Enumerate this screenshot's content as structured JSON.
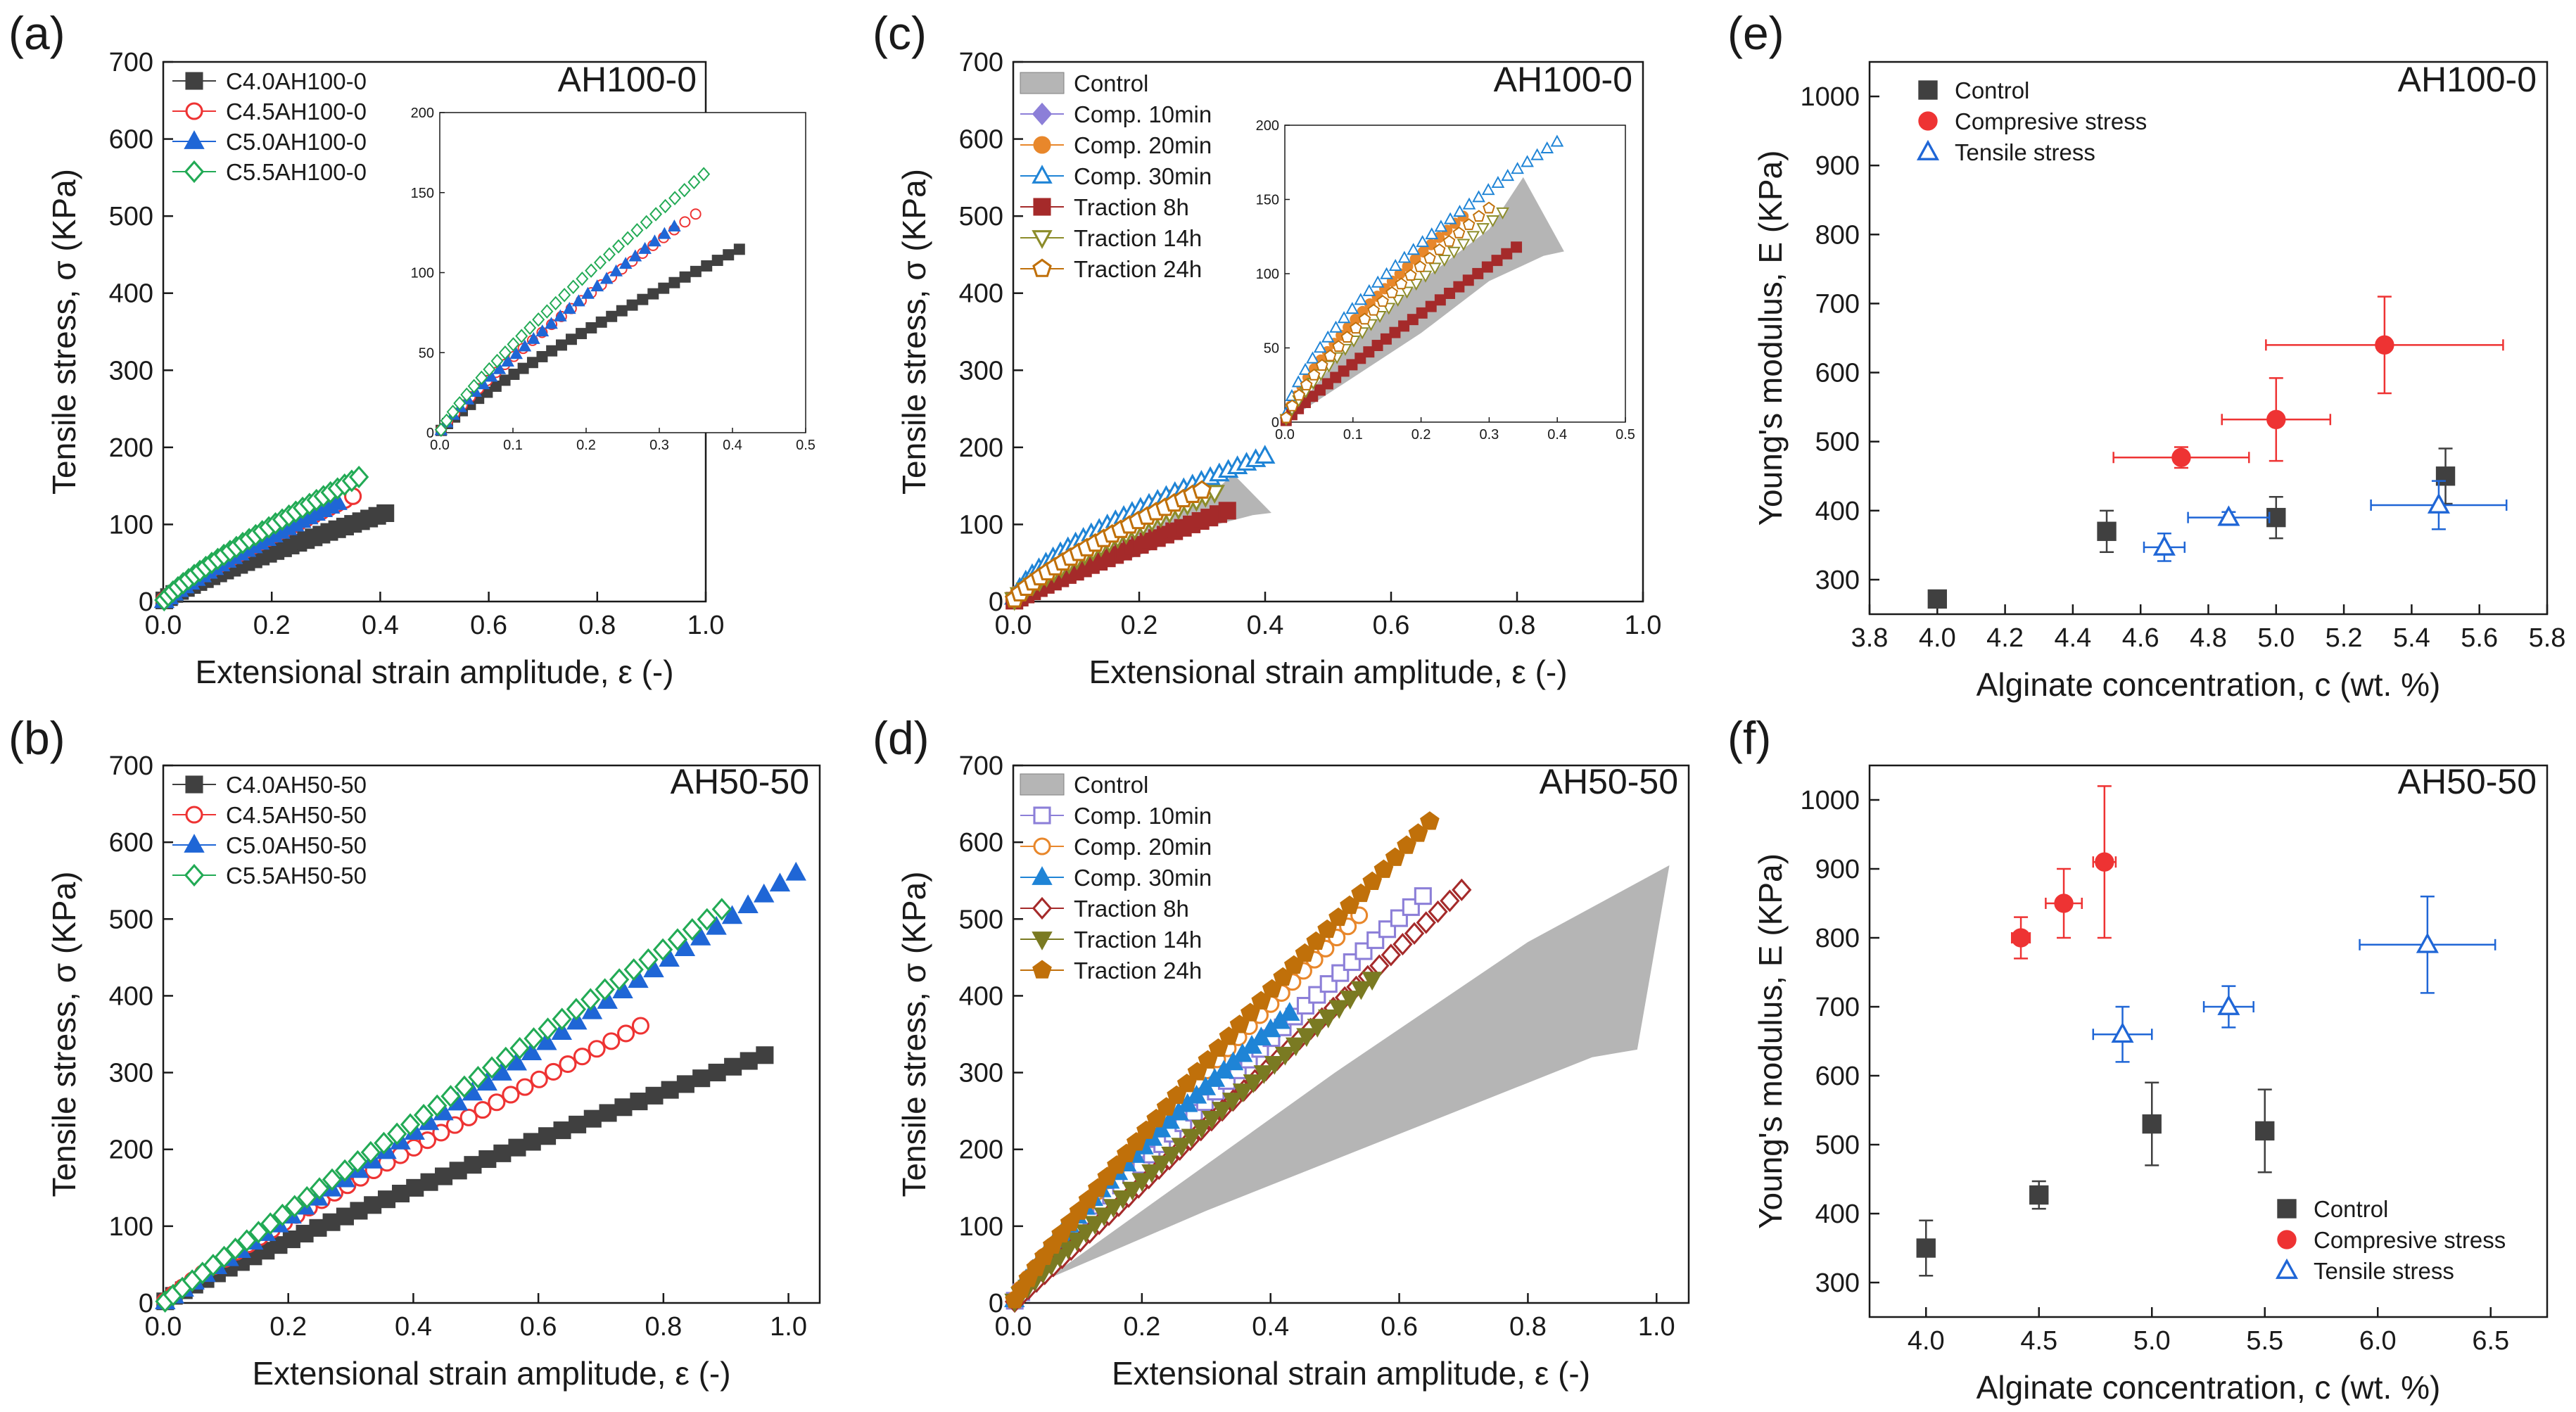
{
  "figure": {
    "domain": "Chart"
  },
  "chart_data": [
    {
      "id": "a",
      "panel_label": "(a)",
      "tag": "AH100-0",
      "type": "scatter",
      "xlabel": "Extensional strain amplitude, ε (-)",
      "ylabel": "Tensile stress, σ (KPa)",
      "xlim": [
        0,
        1.0
      ],
      "ylim": [
        0,
        700
      ],
      "xticks": [
        "0.0",
        "0.2",
        "0.4",
        "0.6",
        "0.8",
        "1.0"
      ],
      "yticks": [
        "0",
        "100",
        "200",
        "300",
        "400",
        "500",
        "600",
        "700"
      ],
      "legend_position": "top-left",
      "series": [
        {
          "name": "C4.0AH100-0",
          "color": "#404040",
          "marker": "square",
          "filled": true,
          "xmax": 0.42,
          "ymax": 117,
          "power": 0.82,
          "n": 32
        },
        {
          "name": "C4.5AH100-0",
          "color": "#ee3333",
          "marker": "circle",
          "filled": false,
          "xmax": 0.36,
          "ymax": 140,
          "power": 0.85,
          "n": 28
        },
        {
          "name": "C5.0AH100-0",
          "color": "#1f66d6",
          "marker": "triangle",
          "filled": true,
          "xmax": 0.33,
          "ymax": 132,
          "power": 0.86,
          "n": 28
        },
        {
          "name": "C5.5AH100-0",
          "color": "#22aa55",
          "marker": "diamond",
          "filled": false,
          "xmax": 0.37,
          "ymax": 165,
          "power": 0.84,
          "n": 32
        }
      ],
      "inset": {
        "xlim": [
          0,
          0.5
        ],
        "ylim": [
          0,
          200
        ],
        "xticks": [
          "0.0",
          "0.1",
          "0.2",
          "0.3",
          "0.4",
          "0.5"
        ],
        "yticks": [
          "0",
          "50",
          "100",
          "150",
          "200"
        ]
      }
    },
    {
      "id": "b",
      "panel_label": "(b)",
      "tag": "AH50-50",
      "type": "scatter",
      "xlabel": "Extensional strain amplitude, ε (-)",
      "ylabel": "Tensile stress, σ (KPa)",
      "xlim": [
        0,
        1.05
      ],
      "ylim": [
        0,
        700
      ],
      "xticks": [
        "0.0",
        "0.2",
        "0.4",
        "0.6",
        "0.8",
        "1.0"
      ],
      "yticks": [
        "0",
        "100",
        "200",
        "300",
        "400",
        "500",
        "600",
        "700"
      ],
      "legend_position": "top-left",
      "series": [
        {
          "name": "C4.0AH50-50",
          "color": "#404040",
          "marker": "square",
          "filled": true,
          "xmax": 0.98,
          "ymax": 328,
          "power": 0.88,
          "n": 44
        },
        {
          "name": "C4.5AH50-50",
          "color": "#ee3333",
          "marker": "circle",
          "filled": false,
          "xmax": 0.78,
          "ymax": 368,
          "power": 0.9,
          "n": 38
        },
        {
          "name": "C5.0AH50-50",
          "color": "#1f66d6",
          "marker": "triangle",
          "filled": true,
          "xmax": 1.03,
          "ymax": 570,
          "power": 1.0,
          "n": 46
        },
        {
          "name": "C5.5AH50-50",
          "color": "#22aa55",
          "marker": "diamond",
          "filled": false,
          "xmax": 0.91,
          "ymax": 522,
          "power": 0.97,
          "n": 44
        }
      ]
    },
    {
      "id": "c",
      "panel_label": "(c)",
      "tag": "AH100-0",
      "type": "scatter",
      "xlabel": "Extensional strain amplitude, ε (-)",
      "ylabel": "Tensile stress, σ (KPa)",
      "xlim": [
        0,
        1.0
      ],
      "ylim": [
        0,
        700
      ],
      "xticks": [
        "0.0",
        "0.2",
        "0.4",
        "0.6",
        "0.8",
        "1.0"
      ],
      "yticks": [
        "0",
        "100",
        "200",
        "300",
        "400",
        "500",
        "600",
        "700"
      ],
      "legend_position": "top-left",
      "control_band": {
        "name": "Control",
        "color": "#b5b5b5",
        "upper": [
          [
            0,
            0
          ],
          [
            0.1,
            55
          ],
          [
            0.2,
            95
          ],
          [
            0.3,
            130
          ],
          [
            0.35,
            165
          ],
          [
            0.41,
            115
          ]
        ],
        "lower": [
          [
            0,
            0
          ],
          [
            0.1,
            30
          ],
          [
            0.2,
            60
          ],
          [
            0.3,
            95
          ],
          [
            0.38,
            112
          ],
          [
            0.41,
            115
          ]
        ]
      },
      "series": [
        {
          "name": "Comp. 10min",
          "color": "#8c7fd8",
          "marker": "diamond",
          "filled": true,
          "xmax": 0.0,
          "ymax": 0,
          "power": 0.8,
          "n": 0
        },
        {
          "name": "Comp. 20min",
          "color": "#e8872b",
          "marker": "circle",
          "filled": true,
          "xmax": 0.27,
          "ymax": 142,
          "power": 0.75,
          "n": 26
        },
        {
          "name": "Comp. 30min",
          "color": "#1f84d6",
          "marker": "triangle",
          "filled": false,
          "xmax": 0.41,
          "ymax": 192,
          "power": 0.65,
          "n": 32
        },
        {
          "name": "Traction 8h",
          "color": "#a52a2a",
          "marker": "square",
          "filled": true,
          "xmax": 0.35,
          "ymax": 121,
          "power": 0.9,
          "n": 28
        },
        {
          "name": "Traction 14h",
          "color": "#8c8c2a",
          "marker": "triangle-down",
          "filled": false,
          "xmax": 0.33,
          "ymax": 145,
          "power": 0.82,
          "n": 26
        },
        {
          "name": "Traction 24h",
          "color": "#c0700a",
          "marker": "pentagon",
          "filled": false,
          "xmax": 0.31,
          "ymax": 148,
          "power": 0.78,
          "n": 24
        }
      ],
      "inset": {
        "xlim": [
          0,
          0.5
        ],
        "ylim": [
          0,
          200
        ],
        "xticks": [
          "0.0",
          "0.1",
          "0.2",
          "0.3",
          "0.4",
          "0.5"
        ],
        "yticks": [
          "0",
          "50",
          "100",
          "150",
          "200"
        ]
      }
    },
    {
      "id": "d",
      "panel_label": "(d)",
      "tag": "AH50-50",
      "type": "scatter",
      "xlabel": "Extensional strain amplitude, ε (-)",
      "ylabel": "Tensile stress, σ (KPa)",
      "xlim": [
        0,
        1.05
      ],
      "ylim": [
        0,
        700
      ],
      "xticks": [
        "0.0",
        "0.2",
        "0.4",
        "0.6",
        "0.8",
        "1.0"
      ],
      "yticks": [
        "0",
        "100",
        "200",
        "300",
        "400",
        "500",
        "600",
        "700"
      ],
      "legend_position": "top-left",
      "control_band": {
        "name": "Control",
        "color": "#b5b5b5",
        "upper": [
          [
            0.05,
            30
          ],
          [
            0.2,
            120
          ],
          [
            0.5,
            300
          ],
          [
            0.8,
            470
          ],
          [
            1.02,
            570
          ]
        ],
        "lower": [
          [
            0.05,
            30
          ],
          [
            0.3,
            120
          ],
          [
            0.6,
            220
          ],
          [
            0.9,
            320
          ],
          [
            0.97,
            330
          ],
          [
            1.02,
            570
          ]
        ]
      },
      "series": [
        {
          "name": "Comp. 10min",
          "color": "#8c7fd8",
          "marker": "square",
          "filled": false,
          "xmax": 0.65,
          "ymax": 540,
          "power": 0.93,
          "n": 40
        },
        {
          "name": "Comp. 20min",
          "color": "#e8872b",
          "marker": "circle",
          "filled": false,
          "xmax": 0.55,
          "ymax": 515,
          "power": 0.88,
          "n": 36
        },
        {
          "name": "Comp. 30min",
          "color": "#1f84d6",
          "marker": "triangle",
          "filled": true,
          "xmax": 0.44,
          "ymax": 385,
          "power": 0.82,
          "n": 34
        },
        {
          "name": "Traction 8h",
          "color": "#a52a2a",
          "marker": "diamond",
          "filled": false,
          "xmax": 0.71,
          "ymax": 548,
          "power": 1.0,
          "n": 44
        },
        {
          "name": "Traction 14h",
          "color": "#7a7a22",
          "marker": "triangle-down",
          "filled": true,
          "xmax": 0.57,
          "ymax": 430,
          "power": 0.95,
          "n": 38
        },
        {
          "name": "Traction 24h",
          "color": "#c0700a",
          "marker": "pentagon",
          "filled": true,
          "xmax": 0.66,
          "ymax": 638,
          "power": 0.9,
          "n": 42
        }
      ]
    },
    {
      "id": "e",
      "panel_label": "(e)",
      "tag": "AH100-0",
      "type": "scatter",
      "xlabel": "Alginate concentration, c (wt. %)",
      "ylabel": "Young's modulus, E (KPa)",
      "xlim": [
        3.8,
        5.8
      ],
      "ylim": [
        250,
        1050
      ],
      "xticks": [
        "3.8",
        "4.0",
        "4.2",
        "4.4",
        "4.6",
        "4.8",
        "5.0",
        "5.2",
        "5.4",
        "5.6",
        "5.8"
      ],
      "yticks": [
        "300",
        "400",
        "500",
        "600",
        "700",
        "800",
        "900",
        "1000"
      ],
      "legend_position": "top-left",
      "series": [
        {
          "name": "Control",
          "color": "#404040",
          "marker": "square",
          "filled": true,
          "points": [
            {
              "x": 4.0,
              "y": 272,
              "xerr": 0,
              "yerr": 10
            },
            {
              "x": 4.5,
              "y": 370,
              "xerr": 0,
              "yerr": 30
            },
            {
              "x": 5.0,
              "y": 390,
              "xerr": 0,
              "yerr": 30
            },
            {
              "x": 5.5,
              "y": 450,
              "xerr": 0,
              "yerr": 40
            }
          ]
        },
        {
          "name": "Compresive stress",
          "color": "#ee3333",
          "marker": "circle",
          "filled": true,
          "points": [
            {
              "x": 4.72,
              "y": 477,
              "xerr": 0.2,
              "yerr": 15
            },
            {
              "x": 5.0,
              "y": 532,
              "xerr": 0.16,
              "yerr": 60
            },
            {
              "x": 5.32,
              "y": 640,
              "xerr": 0.35,
              "yerr": 70
            }
          ]
        },
        {
          "name": "Tensile stress",
          "color": "#1f66d6",
          "marker": "triangle",
          "filled": false,
          "points": [
            {
              "x": 4.67,
              "y": 347,
              "xerr": 0.06,
              "yerr": 20
            },
            {
              "x": 4.86,
              "y": 390,
              "xerr": 0.12,
              "yerr": 8
            },
            {
              "x": 5.48,
              "y": 408,
              "xerr": 0.2,
              "yerr": 35
            }
          ]
        }
      ]
    },
    {
      "id": "f",
      "panel_label": "(f)",
      "tag": "AH50-50",
      "type": "scatter",
      "xlabel": "Alginate concentration, c (wt. %)",
      "ylabel": "Young's modulus, E (KPa)",
      "xlim": [
        3.75,
        6.75
      ],
      "ylim": [
        250,
        1050
      ],
      "xticks": [
        "4.0",
        "4.5",
        "5.0",
        "5.5",
        "6.0",
        "6.5"
      ],
      "yticks": [
        "300",
        "400",
        "500",
        "600",
        "700",
        "800",
        "900",
        "1000"
      ],
      "legend_position": "bottom-right",
      "series": [
        {
          "name": "Control",
          "color": "#404040",
          "marker": "square",
          "filled": true,
          "points": [
            {
              "x": 4.0,
              "y": 350,
              "xerr": 0,
              "yerr": 40
            },
            {
              "x": 4.5,
              "y": 427,
              "xerr": 0,
              "yerr": 20
            },
            {
              "x": 5.0,
              "y": 530,
              "xerr": 0,
              "yerr": 60
            },
            {
              "x": 5.5,
              "y": 520,
              "xerr": 0,
              "yerr": 60
            }
          ]
        },
        {
          "name": "Compresive stress",
          "color": "#ee3333",
          "marker": "circle",
          "filled": true,
          "points": [
            {
              "x": 4.42,
              "y": 800,
              "xerr": 0.04,
              "yerr": 30
            },
            {
              "x": 4.61,
              "y": 850,
              "xerr": 0.08,
              "yerr": 50
            },
            {
              "x": 4.79,
              "y": 910,
              "xerr": 0.05,
              "yerr": 110
            }
          ]
        },
        {
          "name": "Tensile stress",
          "color": "#1f66d6",
          "marker": "triangle",
          "filled": false,
          "points": [
            {
              "x": 4.87,
              "y": 660,
              "xerr": 0.13,
              "yerr": 40
            },
            {
              "x": 5.34,
              "y": 700,
              "xerr": 0.11,
              "yerr": 30
            },
            {
              "x": 6.22,
              "y": 790,
              "xerr": 0.3,
              "yerr": 70
            }
          ]
        }
      ]
    }
  ]
}
